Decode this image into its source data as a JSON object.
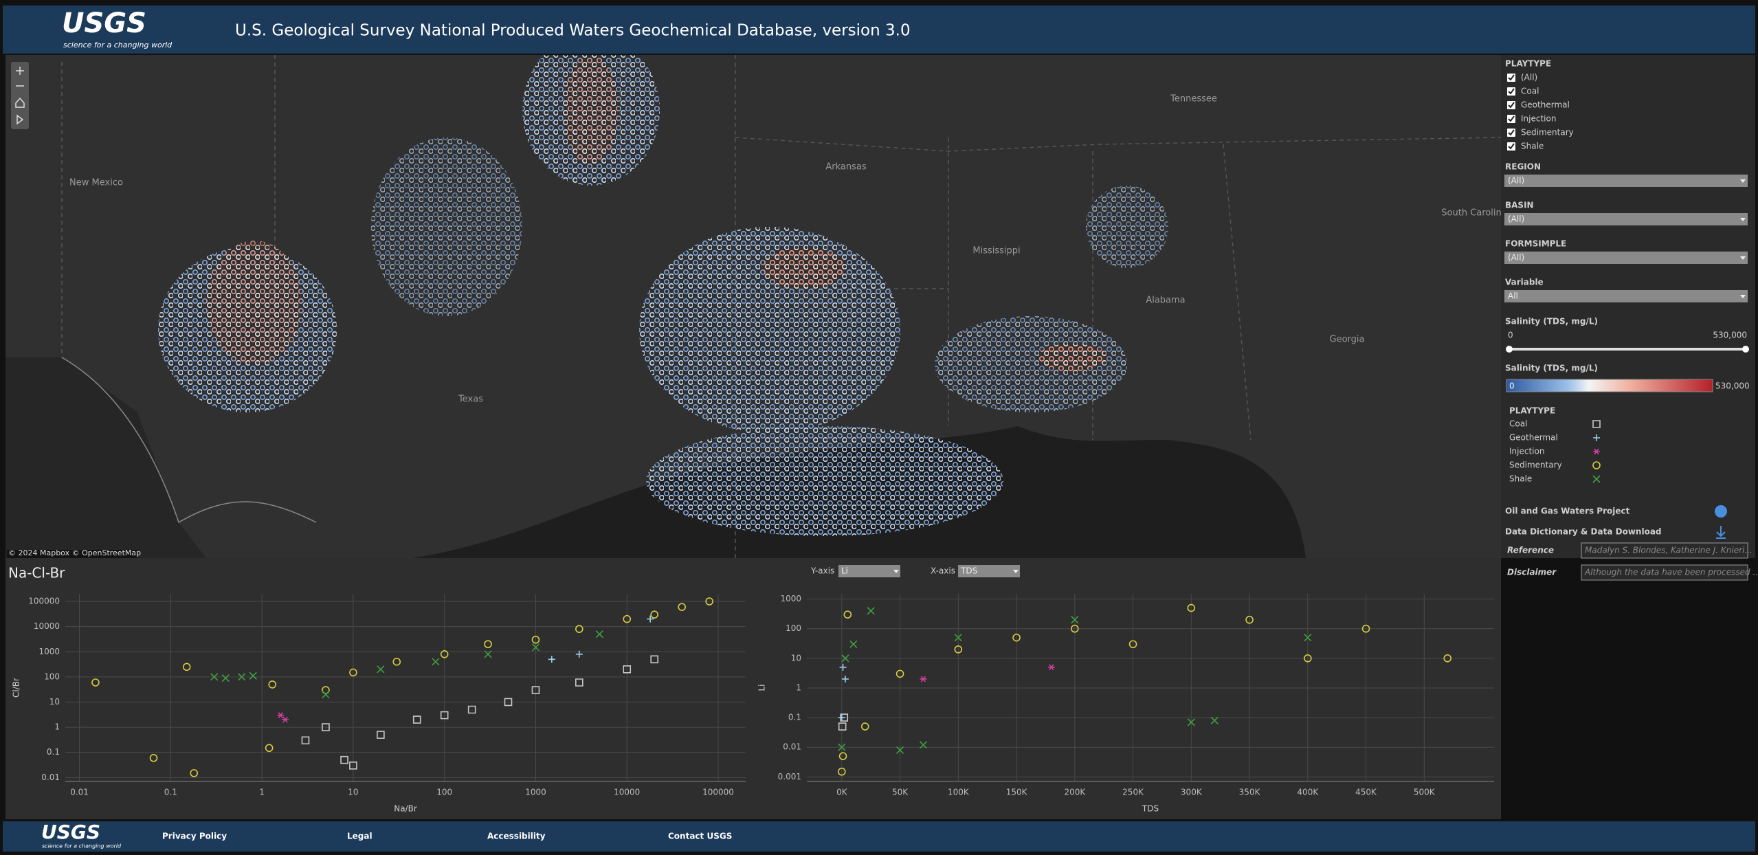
{
  "header": {
    "logo": "USGS",
    "tagline": "science for a changing world",
    "title": "U.S. Geological Survey National Produced Waters Geochemical Database, version 3.0"
  },
  "map": {
    "labels": [
      "New Mexico",
      "Texas",
      "Arkansas",
      "Mississippi",
      "Alabama",
      "Georgia",
      "Tennessee",
      "South Carolina"
    ],
    "attribution": "© 2024 Mapbox © OpenStreetMap"
  },
  "filters": {
    "playtype": {
      "label": "PLAYTYPE",
      "options": [
        "(All)",
        "Coal",
        "Geothermal",
        "Injection",
        "Sedimentary",
        "Shale"
      ]
    },
    "dropdowns": [
      {
        "label": "REGION",
        "value": "(All)"
      },
      {
        "label": "BASIN",
        "value": "(All)"
      },
      {
        "label": "FORMSIMPLE",
        "value": "(All)"
      },
      {
        "label": "Variable",
        "value": "All"
      }
    ],
    "salinity_filter": {
      "label": "Salinity (TDS, mg/L)",
      "min": "0",
      "max": "530,000"
    },
    "salinity_scale": {
      "label": "Salinity (TDS, mg/L)",
      "min": "0",
      "max": "530,000"
    }
  },
  "legend": {
    "title": "PLAYTYPE"
  },
  "links": [
    "Oil and Gas Waters Project",
    "Data Dictionary & Data Download"
  ],
  "fields": [
    {
      "label": "Reference",
      "value": "Madalyn S. Blondes, Katherine J. Knieri..."
    },
    {
      "label": "Disclaimer",
      "value": "Although the data have been processed ..."
    }
  ],
  "axis_selectors": [
    {
      "label": "Y-axis",
      "value": "Li"
    },
    {
      "label": "X-axis",
      "value": "TDS"
    }
  ],
  "chart_data": [
    {
      "type": "scatter",
      "title": "Na-Cl-Br",
      "x_label": "Na/Br",
      "y_label": "Cl/Br",
      "xscale": "log",
      "yscale": "log",
      "grid": true,
      "xlim": [
        0.007,
        200000
      ],
      "ylim": [
        0.007,
        200000
      ],
      "xticks": [
        0.01,
        0.1,
        1,
        10,
        100,
        1000,
        10000,
        100000
      ],
      "yticks": [
        0.01,
        0.1,
        1,
        10,
        100,
        1000,
        10000,
        100000
      ],
      "series": [
        {
          "name": "Coal",
          "color": "#c8c8c8",
          "marker": "square",
          "x": [
            3,
            5,
            8,
            10,
            20,
            50,
            100,
            200,
            500,
            1000,
            3000,
            10000,
            20000
          ],
          "values": [
            0.3,
            1,
            0.05,
            0.03,
            0.5,
            2,
            3,
            5,
            10,
            30,
            60,
            200,
            500
          ]
        },
        {
          "name": "Geothermal",
          "color": "#9fd0f0",
          "marker": "plus",
          "x": [
            1500,
            3000,
            18000
          ],
          "values": [
            500,
            800,
            20000
          ]
        },
        {
          "name": "Injection",
          "color": "#d040a0",
          "marker": "asterisk",
          "x": [
            1.6,
            1.8
          ],
          "values": [
            3,
            2
          ]
        },
        {
          "name": "Sedimentary",
          "color": "#d8cc40",
          "marker": "circle",
          "x": [
            0.015,
            0.065,
            0.15,
            0.18,
            1.2,
            1.3,
            5,
            10,
            30,
            100,
            300,
            1000,
            3000,
            10000,
            20000,
            40000,
            80000
          ],
          "values": [
            60,
            0.06,
            250,
            0.015,
            0.15,
            50,
            30,
            150,
            400,
            800,
            2000,
            3000,
            8000,
            20000,
            30000,
            60000,
            100000
          ]
        },
        {
          "name": "Shale",
          "color": "#40a040",
          "marker": "x",
          "x": [
            0.3,
            0.4,
            0.6,
            0.8,
            5,
            20,
            80,
            300,
            1000,
            5000
          ],
          "values": [
            100,
            90,
            100,
            110,
            20,
            200,
            400,
            800,
            1500,
            5000
          ]
        }
      ]
    },
    {
      "type": "scatter",
      "x_label": "TDS",
      "y_label": "Li",
      "xscale": "linear",
      "yscale": "log",
      "grid": true,
      "xlim": [
        -30000,
        560000
      ],
      "ylim": [
        0.0007,
        1500
      ],
      "xticks": [
        {
          "value": 0,
          "label": "0K"
        },
        {
          "value": 50000,
          "label": "50K"
        },
        {
          "value": 100000,
          "label": "100K"
        },
        {
          "value": 150000,
          "label": "150K"
        },
        {
          "value": 200000,
          "label": "200K"
        },
        {
          "value": 250000,
          "label": "250K"
        },
        {
          "value": 300000,
          "label": "300K"
        },
        {
          "value": 350000,
          "label": "350K"
        },
        {
          "value": 400000,
          "label": "400K"
        },
        {
          "value": 450000,
          "label": "450K"
        },
        {
          "value": 500000,
          "label": "500K"
        }
      ],
      "yticks": [
        0.001,
        0.01,
        0.1,
        1,
        10,
        100,
        1000
      ],
      "series": [
        {
          "color": "#c8c8c8",
          "marker": "square",
          "x": [
            500,
            2000
          ],
          "values": [
            0.05,
            0.1
          ]
        },
        {
          "color": "#9fd0f0",
          "marker": "plus",
          "x": [
            0,
            1000,
            3000
          ],
          "values": [
            0.1,
            5,
            2
          ]
        },
        {
          "color": "#d040a0",
          "marker": "asterisk",
          "x": [
            70000,
            180000
          ],
          "values": [
            2,
            5
          ]
        },
        {
          "color": "#d8cc40",
          "marker": "circle",
          "x": [
            0,
            1000,
            5000,
            20000,
            50000,
            100000,
            150000,
            200000,
            250000,
            300000,
            350000,
            400000,
            450000,
            520000
          ],
          "values": [
            0.0015,
            0.005,
            300,
            0.05,
            3,
            20,
            50,
            100,
            30,
            500,
            200,
            10,
            100,
            10
          ]
        },
        {
          "color": "#40a040",
          "marker": "x",
          "x": [
            0,
            3000,
            10000,
            25000,
            50000,
            70000,
            100000,
            200000,
            300000,
            320000,
            400000
          ],
          "values": [
            0.01,
            10,
            30,
            400,
            0.008,
            0.012,
            50,
            200,
            0.07,
            0.08,
            50
          ]
        }
      ]
    }
  ],
  "footer": {
    "logo": "USGS",
    "tagline": "science for a changing world",
    "links": [
      "Privacy Policy",
      "Legal",
      "Accessibility",
      "Contact USGS"
    ]
  }
}
